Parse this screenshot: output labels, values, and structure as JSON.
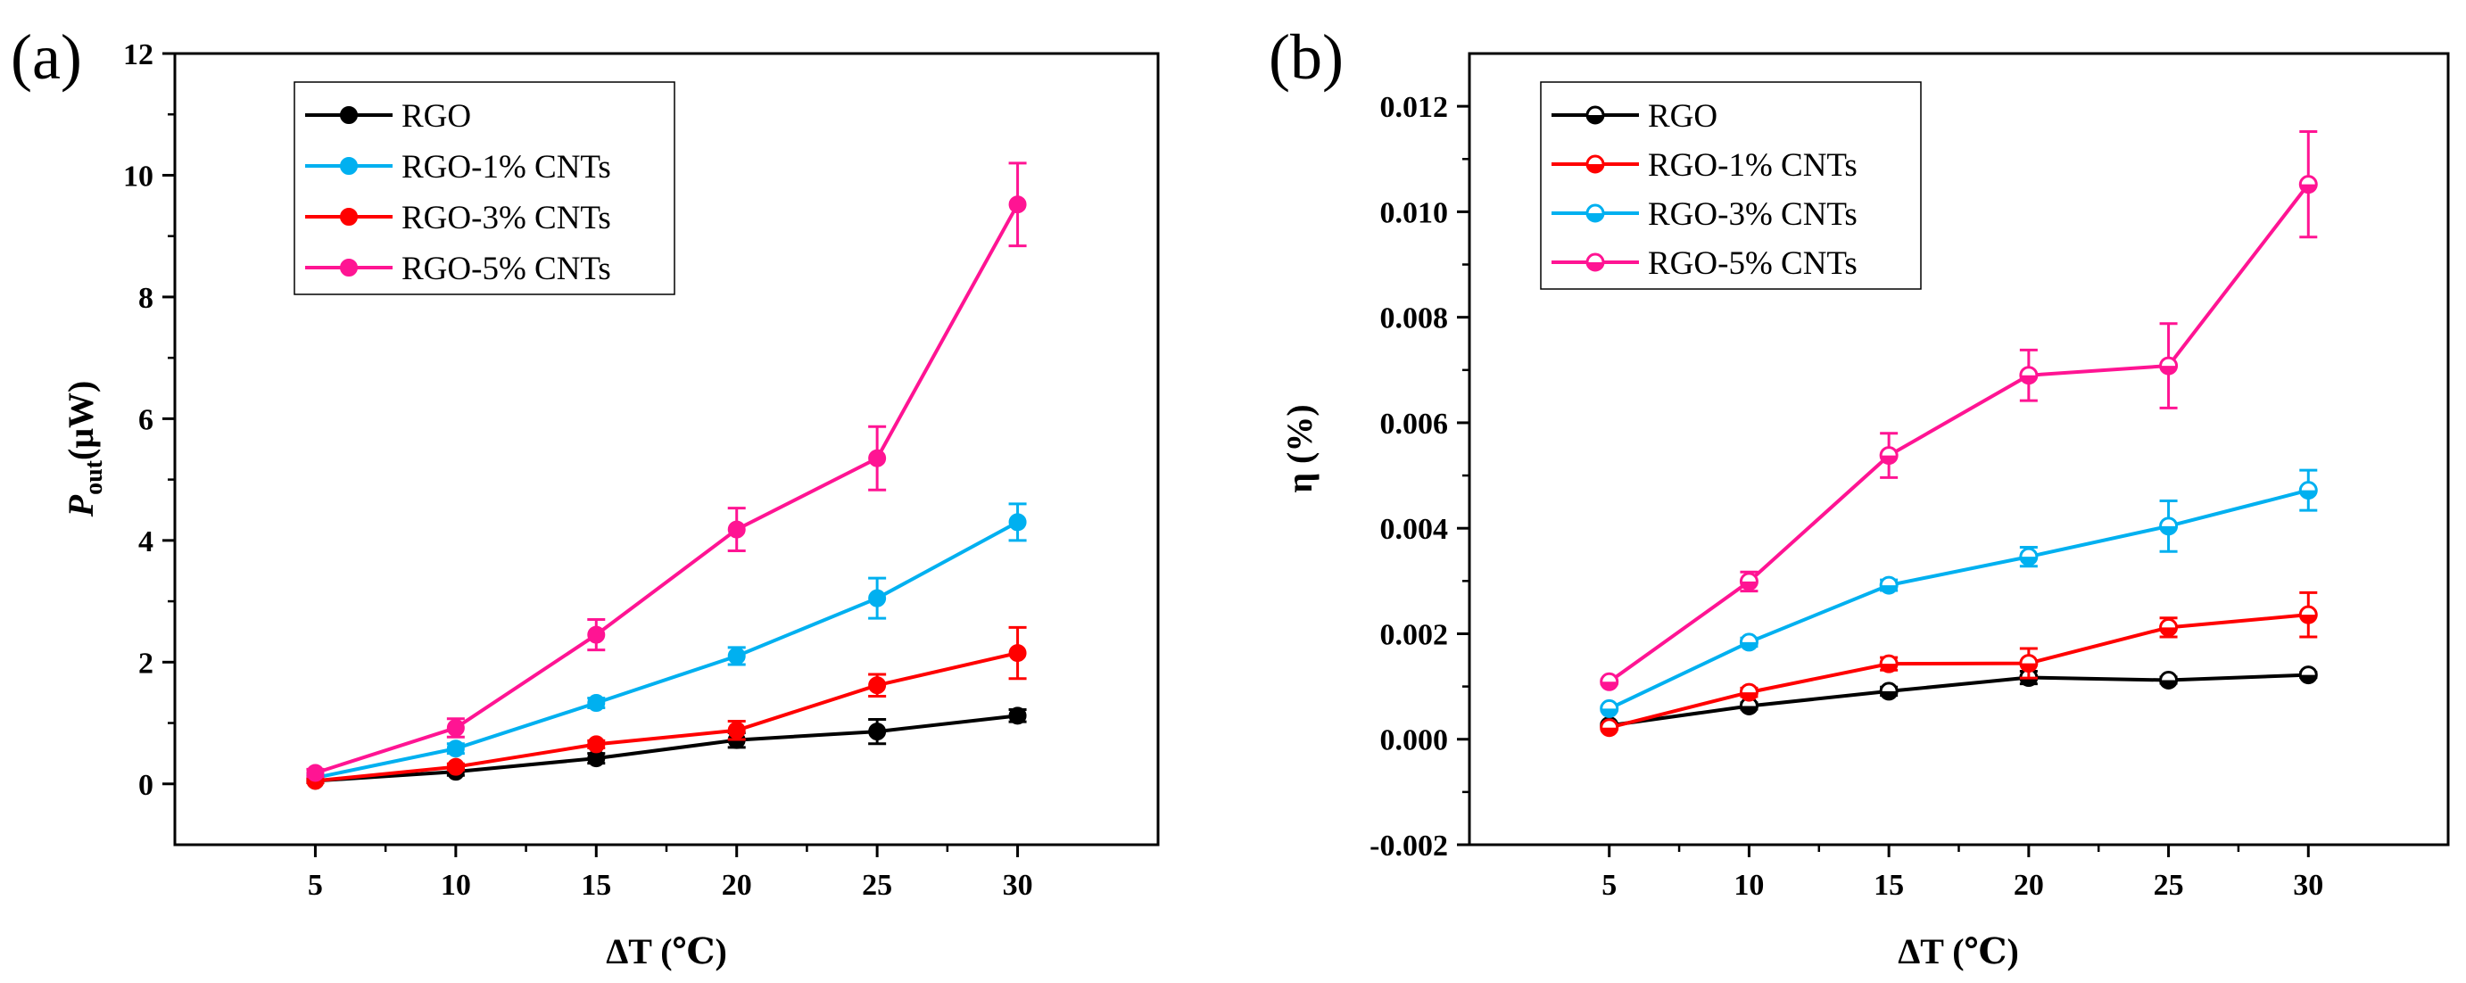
{
  "chart_data": [
    {
      "type": "line",
      "panel_label": "(a)",
      "xlabel": "ΔT (℃)",
      "ylabel_main": "P",
      "ylabel_sub": "out",
      "ylabel_unit": "(μW)",
      "x": [
        5,
        10,
        15,
        20,
        25,
        30
      ],
      "xlim": [
        0,
        35
      ],
      "ylim": [
        -1,
        12
      ],
      "xticks": [
        5,
        10,
        15,
        20,
        25,
        30
      ],
      "yticks": [
        0,
        2,
        4,
        6,
        8,
        10,
        12
      ],
      "grid": false,
      "legend": "top-left",
      "marker": "filled-circle",
      "series": [
        {
          "name": "RGO",
          "color": "#000000",
          "values": [
            0.05,
            0.2,
            0.42,
            0.72,
            0.86,
            1.12
          ],
          "errors": [
            0.03,
            0.06,
            0.08,
            0.12,
            0.2,
            0.1
          ]
        },
        {
          "name": "RGO-1% CNTs",
          "color": "#00b0f0",
          "values": [
            0.1,
            0.58,
            1.33,
            2.1,
            3.05,
            4.3
          ],
          "errors": [
            0.05,
            0.08,
            0.08,
            0.14,
            0.33,
            0.3
          ]
        },
        {
          "name": "RGO-3% CNTs",
          "color": "#ff0000",
          "values": [
            0.05,
            0.28,
            0.65,
            0.88,
            1.62,
            2.15
          ],
          "errors": [
            0.03,
            0.05,
            0.06,
            0.15,
            0.18,
            0.42
          ]
        },
        {
          "name": "RGO-5% CNTs",
          "color": "#ff1493",
          "values": [
            0.18,
            0.92,
            2.45,
            4.18,
            5.35,
            9.52
          ],
          "errors": [
            0.06,
            0.15,
            0.25,
            0.35,
            0.52,
            0.68
          ]
        }
      ]
    },
    {
      "type": "line",
      "panel_label": "(b)",
      "xlabel": "ΔT (℃)",
      "ylabel": "η (%)",
      "x": [
        5,
        10,
        15,
        20,
        25,
        30
      ],
      "xlim": [
        0,
        35
      ],
      "ylim": [
        -0.002,
        0.013
      ],
      "xticks": [
        5,
        10,
        15,
        20,
        25,
        30
      ],
      "yticks": [
        -0.002,
        0.0,
        0.002,
        0.004,
        0.006,
        0.008,
        0.01,
        0.012
      ],
      "ytick_labels": [
        "-0.002",
        "0.000",
        "0.002",
        "0.004",
        "0.006",
        "0.008",
        "0.010",
        "0.012"
      ],
      "grid": false,
      "legend": "top-left",
      "marker": "half-filled-circle",
      "series": [
        {
          "name": "RGO",
          "color": "#000000",
          "values": [
            0.00026,
            0.00063,
            0.00091,
            0.00117,
            0.00112,
            0.00122
          ],
          "errors": [
            4e-05,
            6e-05,
            8e-05,
            0.00012,
            6e-05,
            5e-05
          ]
        },
        {
          "name": "RGO-1% CNTs",
          "color": "#ff0000",
          "values": [
            0.00022,
            0.00089,
            0.00143,
            0.00144,
            0.00212,
            0.00236
          ],
          "errors": [
            3e-05,
            8e-05,
            0.00012,
            0.00028,
            0.00018,
            0.00042
          ]
        },
        {
          "name": "RGO-3% CNTs",
          "color": "#00b0f0",
          "values": [
            0.00058,
            0.00184,
            0.00292,
            0.00346,
            0.00404,
            0.00472
          ],
          "errors": [
            4e-05,
            8e-05,
            0.0001,
            0.00018,
            0.00048,
            0.00038
          ]
        },
        {
          "name": "RGO-5% CNTs",
          "color": "#ff1493",
          "values": [
            0.00109,
            0.00299,
            0.00538,
            0.0069,
            0.00708,
            0.01052
          ],
          "errors": [
            4e-05,
            0.00018,
            0.00042,
            0.00048,
            0.0008,
            0.001
          ]
        }
      ]
    }
  ]
}
